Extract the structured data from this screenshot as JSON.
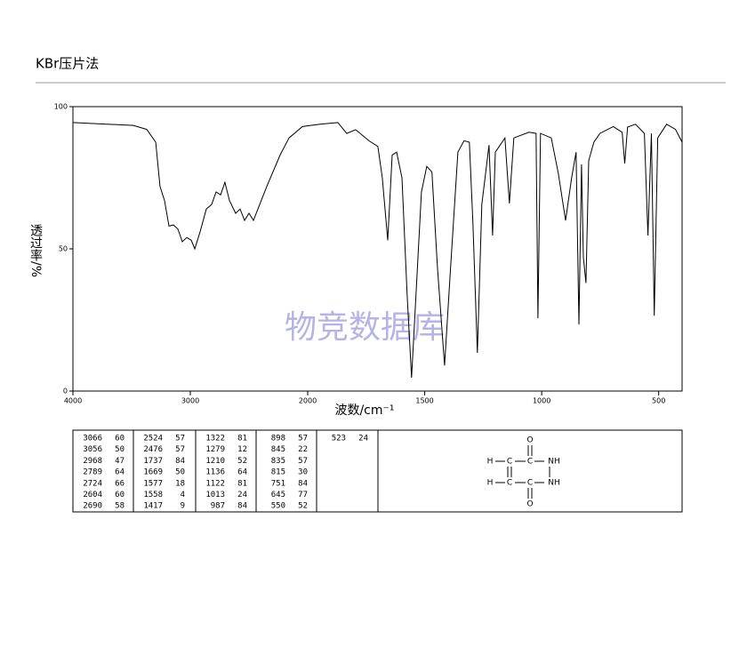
{
  "header": {
    "title": "KBr压片法"
  },
  "chart_data": {
    "type": "line",
    "watermark": "物竞数据库",
    "xlabel": "波数/cm⁻¹",
    "ylabel": "透过率/%",
    "xlim": [
      4000,
      400
    ],
    "xticks": [
      4000,
      3000,
      2000,
      1500,
      1000,
      500
    ],
    "x_scale_change": 2000,
    "ylim": [
      0,
      100
    ],
    "yticks": [
      0,
      50,
      100
    ],
    "x": [
      4000,
      3485,
      3371,
      3295,
      3258,
      3220,
      3182,
      3144,
      3106,
      3068,
      3030,
      2992,
      2962,
      2917,
      2864,
      2818,
      2780,
      2742,
      2705,
      2667,
      2614,
      2576,
      2538,
      2500,
      2462,
      2424,
      2348,
      2235,
      2159,
      2045,
      1947,
      1871,
      1833,
      1795,
      1738,
      1700,
      1681,
      1658,
      1639,
      1620,
      1597,
      1575,
      1556,
      1537,
      1514,
      1491,
      1469,
      1446,
      1415,
      1389,
      1358,
      1332,
      1309,
      1294,
      1275,
      1256,
      1225,
      1210,
      1198,
      1157,
      1138,
      1119,
      1054,
      1024,
      1016,
      1005,
      959,
      929,
      898,
      872,
      853,
      841,
      830,
      822,
      811,
      799,
      777,
      751,
      694,
      656,
      645,
      633,
      599,
      561,
      546,
      531,
      519,
      504,
      466,
      428,
      400
    ],
    "series": [
      {
        "color": "#000000",
        "values": [
          94.4,
          93.4,
          92,
          87.5,
          72,
          67,
          58,
          58.4,
          57,
          52.5,
          54,
          53,
          50,
          56,
          64,
          65.6,
          70,
          69,
          73.4,
          67,
          62.5,
          64,
          60,
          62.5,
          60,
          64,
          72,
          83,
          89,
          93,
          93.8,
          94.4,
          90.6,
          91.9,
          88,
          86,
          75,
          53,
          83,
          84,
          75,
          34,
          4.7,
          34,
          70,
          79,
          77,
          44,
          9,
          44,
          84,
          88,
          87.5,
          59,
          13.4,
          65.6,
          86.5,
          54.7,
          84,
          89,
          66,
          89,
          91,
          90.6,
          25.6,
          90.6,
          89,
          76.6,
          60,
          75,
          84,
          23.4,
          79.7,
          47,
          38,
          81,
          87.5,
          90.6,
          93,
          91,
          80,
          92.8,
          93.8,
          90.6,
          54.7,
          90.6,
          26.5,
          89,
          93.8,
          92,
          87.5
        ]
      }
    ]
  },
  "peak_table": {
    "columns": [
      [
        [
          "3066",
          "60"
        ],
        [
          "3056",
          "50"
        ],
        [
          "2968",
          "47"
        ],
        [
          "2789",
          "64"
        ],
        [
          "2724",
          "66"
        ],
        [
          "2604",
          "60"
        ],
        [
          "2690",
          "58"
        ]
      ],
      [
        [
          "2524",
          "57"
        ],
        [
          "2476",
          "57"
        ],
        [
          "1737",
          "84"
        ],
        [
          "1669",
          "50"
        ],
        [
          "1577",
          "18"
        ],
        [
          "1558",
          "4"
        ],
        [
          "1417",
          "9"
        ]
      ],
      [
        [
          "1322",
          "81"
        ],
        [
          "1279",
          "12"
        ],
        [
          "1210",
          "52"
        ],
        [
          "1136",
          "64"
        ],
        [
          "1122",
          "81"
        ],
        [
          "1013",
          "24"
        ],
        [
          "987",
          "84"
        ]
      ],
      [
        [
          "898",
          "57"
        ],
        [
          "845",
          "22"
        ],
        [
          "835",
          "57"
        ],
        [
          "815",
          "30"
        ],
        [
          "751",
          "84"
        ],
        [
          "645",
          "77"
        ],
        [
          "550",
          "52"
        ]
      ],
      [
        [
          "523",
          "24"
        ]
      ]
    ]
  },
  "structure": {
    "atoms": [
      "H",
      "C",
      "C",
      "O",
      "NH",
      "H",
      "C",
      "C",
      "O",
      "NH"
    ]
  }
}
